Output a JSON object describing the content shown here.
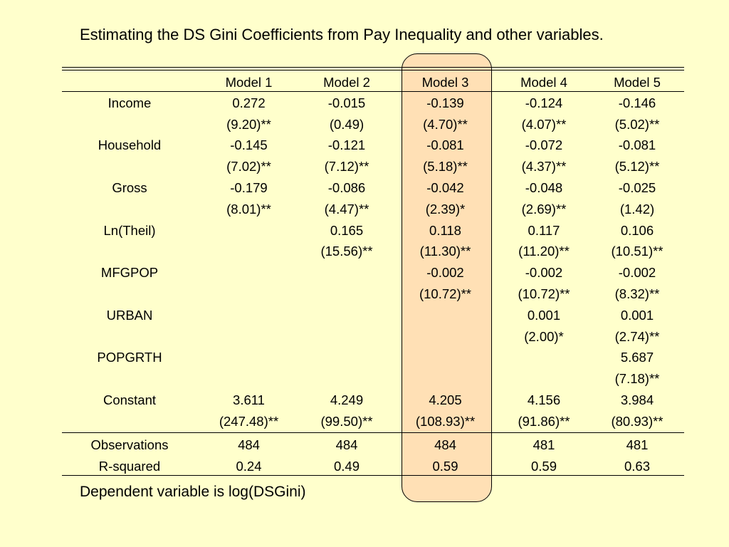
{
  "title": "Estimating the DS Gini Coefficients from Pay Inequality and other variables.",
  "highlight_color": "#FFE0B5",
  "background_color": "#FFFFCC",
  "columns": [
    "",
    "Model 1",
    "Model 2",
    "Model 3",
    "Model 4",
    "Model 5"
  ],
  "rows": [
    [
      "Income",
      "0.272",
      "-0.015",
      "-0.139",
      "-0.124",
      "-0.146"
    ],
    [
      "",
      "(9.20)**",
      "(0.49)",
      "(4.70)**",
      "(4.07)**",
      "(5.02)**"
    ],
    [
      "Household",
      "-0.145",
      "-0.121",
      "-0.081",
      "-0.072",
      "-0.081"
    ],
    [
      "",
      "(7.02)**",
      "(7.12)**",
      "(5.18)**",
      "(4.37)**",
      "(5.12)**"
    ],
    [
      "Gross",
      "-0.179",
      "-0.086",
      "-0.042",
      "-0.048",
      "-0.025"
    ],
    [
      "",
      "(8.01)**",
      "(4.47)**",
      "(2.39)*",
      "(2.69)**",
      "(1.42)"
    ],
    [
      "Ln(Theil)",
      "",
      "0.165",
      "0.118",
      "0.117",
      "0.106"
    ],
    [
      "",
      "",
      "(15.56)**",
      "(11.30)**",
      "(11.20)**",
      "(10.51)**"
    ],
    [
      "MFGPOP",
      "",
      "",
      "-0.002",
      "-0.002",
      "-0.002"
    ],
    [
      "",
      "",
      "",
      "(10.72)**",
      "(10.72)**",
      "(8.32)**"
    ],
    [
      "URBAN",
      "",
      "",
      "",
      "0.001",
      "0.001"
    ],
    [
      "",
      "",
      "",
      "",
      "(2.00)*",
      "(2.74)**"
    ],
    [
      "POPGRTH",
      "",
      "",
      "",
      "",
      "5.687"
    ],
    [
      "",
      "",
      "",
      "",
      "",
      "(7.18)**"
    ],
    [
      "Constant",
      "3.611",
      "4.249",
      "4.205",
      "4.156",
      "3.984"
    ],
    [
      "",
      "(247.48)**",
      "(99.50)**",
      "(108.93)**",
      "(91.86)**",
      "(80.93)**"
    ]
  ],
  "stats": [
    [
      "Observations",
      "484",
      "484",
      "484",
      "481",
      "481"
    ],
    [
      "R-squared",
      "0.24",
      "0.49",
      "0.59",
      "0.59",
      "0.63"
    ]
  ],
  "note": "Dependent variable is log(DSGini)"
}
